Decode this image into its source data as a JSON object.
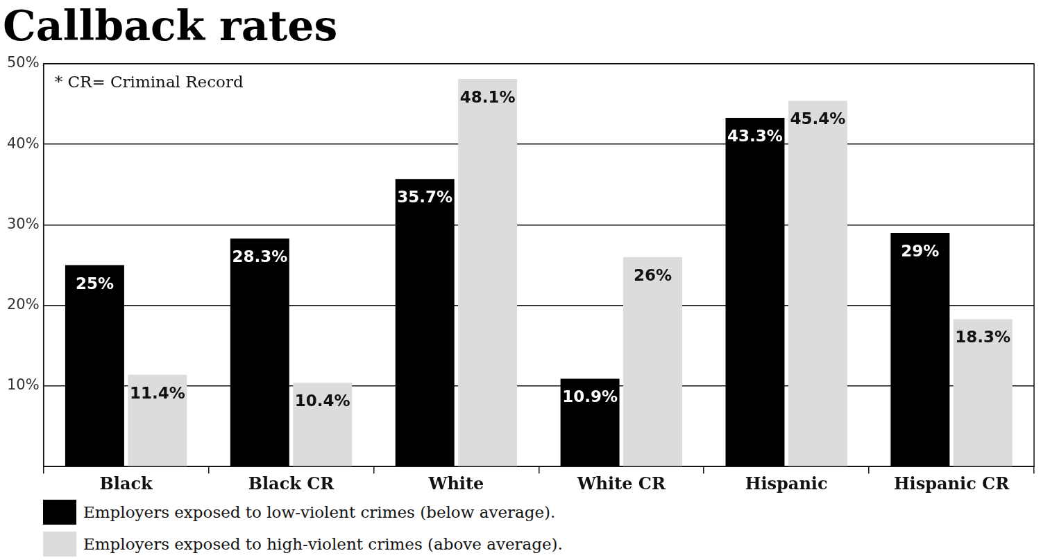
{
  "chart_data": {
    "type": "bar",
    "title": "Callback rates",
    "annotations": [
      "* CR= Criminal Record"
    ],
    "categories": [
      "Black",
      "Black CR",
      "White",
      "White CR",
      "Hispanic",
      "Hispanic CR"
    ],
    "series": [
      {
        "name": "Employers exposed to low-violent crimes (below average).",
        "color": "#000000",
        "values": [
          25,
          28.3,
          35.7,
          10.9,
          43.3,
          29
        ],
        "value_labels": [
          "25%",
          "28.3%",
          "35.7%",
          "10.9%",
          "43.3%",
          "29%"
        ]
      },
      {
        "name": "Employers exposed to high-violent crimes (above average).",
        "color": "#dcdcdc",
        "values": [
          11.4,
          10.4,
          48.1,
          26,
          45.4,
          18.3
        ],
        "value_labels": [
          "11.4%",
          "10.4%",
          "48.1%",
          "26%",
          "45.4%",
          "18.3%"
        ]
      }
    ],
    "ylim": [
      0,
      50
    ],
    "yticks": [
      {
        "value": 10,
        "label": "10%"
      },
      {
        "value": 20,
        "label": "20%"
      },
      {
        "value": 30,
        "label": "30%"
      },
      {
        "value": 40,
        "label": "40%"
      },
      {
        "value": 50,
        "label": "50%"
      }
    ],
    "grid": true,
    "legend": "bottom left",
    "data_labels": true
  }
}
